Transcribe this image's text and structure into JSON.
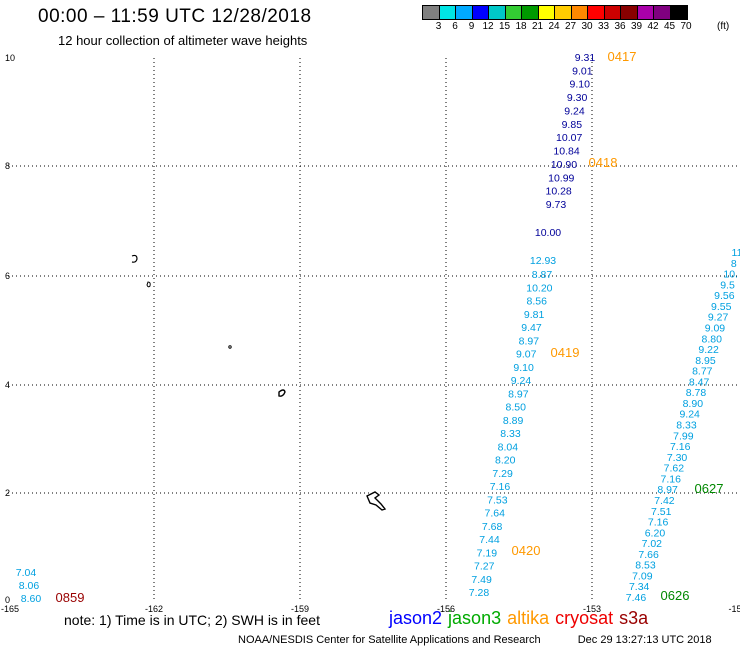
{
  "header": {
    "title": "00:00 – 11:59 UTC 12/28/2018",
    "subtitle": "12 hour collection of altimeter wave heights"
  },
  "legend": {
    "colors": [
      "#808080",
      "#00e5e5",
      "#00aaff",
      "#0000ff",
      "#00c8c8",
      "#33cc33",
      "#009900",
      "#ffff00",
      "#ffcc00",
      "#ff8800",
      "#ff0000",
      "#cc0000",
      "#880000",
      "#aa00aa",
      "#800080",
      "#000000"
    ],
    "labels": [
      "3",
      "6",
      "9",
      "12",
      "15",
      "18",
      "21",
      "24",
      "27",
      "30",
      "33",
      "36",
      "39",
      "42",
      "45",
      "70"
    ],
    "unit": "(ft)"
  },
  "map": {
    "x_ticks": [
      "-165",
      "-162",
      "-159",
      "-156",
      "-153",
      "-15"
    ],
    "y_ticks": [
      "10",
      "8",
      "6",
      "4",
      "2",
      "0"
    ],
    "tracks": [
      {
        "color": "#000099",
        "values": [
          "9.31",
          "9.01",
          "9.10",
          "9.30",
          "9.24",
          "9.85",
          "10.07",
          "10.84",
          "10.90",
          "10.99",
          "10.28",
          "9.73",
          "10.00"
        ]
      },
      {
        "color": "#00a0e0",
        "values": [
          "12.93"
        ]
      },
      {
        "color": "#00a0e0",
        "values": [
          "8.87",
          "10.20",
          "8.56",
          "9.81",
          "9.47",
          "8.97",
          "9.07",
          "9.10",
          "9.24",
          "8.97",
          "8.50",
          "8.89",
          "8.33",
          "8.04",
          "8.20",
          "7.29",
          "7.16",
          "7.53",
          "7.64",
          "7.68",
          "7.44",
          "7.19",
          "7.27",
          "7.49",
          "7.28"
        ]
      },
      {
        "color": "#00a0e0",
        "values": [
          "11",
          "8",
          "10.",
          "9.5",
          "9.56",
          "9.55",
          "9.27",
          "9.09",
          "8.80",
          "9.22",
          "8.95",
          "8.77",
          "8.47",
          "8.78",
          "8.90",
          "9.24",
          "8.33",
          "7.99",
          "7.16",
          "7.30",
          "7.62",
          "7.16",
          "8.97",
          "7.42",
          "7.51",
          "7.16",
          "6.20",
          "7.02",
          "7.66",
          "8.53",
          "7.09",
          "7.34",
          "7.46"
        ]
      },
      {
        "color": "#00a0e0",
        "values": [
          "7.04",
          "8.06",
          "8.60"
        ]
      }
    ],
    "times": [
      {
        "label": "0417",
        "color": "#ff9900"
      },
      {
        "label": "0418",
        "color": "#ff9900"
      },
      {
        "label": "0419",
        "color": "#ff9900"
      },
      {
        "label": "0420",
        "color": "#ff9900"
      },
      {
        "label": "0627",
        "color": "#008800"
      },
      {
        "label": "0626",
        "color": "#008800"
      },
      {
        "label": "0859",
        "color": "#990000"
      }
    ]
  },
  "footer": {
    "note": "note:  1) Time is in UTC;  2) SWH is in feet",
    "satellites": [
      {
        "name": "jason2",
        "color": "#0000ff"
      },
      {
        "name": "jason3",
        "color": "#00aa00"
      },
      {
        "name": "altika",
        "color": "#ff9900"
      },
      {
        "name": "cryosat",
        "color": "#ee0000"
      },
      {
        "name": "s3a",
        "color": "#990000"
      }
    ],
    "credit": "NOAA/NESDIS Center for Satellite Applications and Research",
    "timestamp": "Dec 29  13:27:13 UTC 2018"
  }
}
